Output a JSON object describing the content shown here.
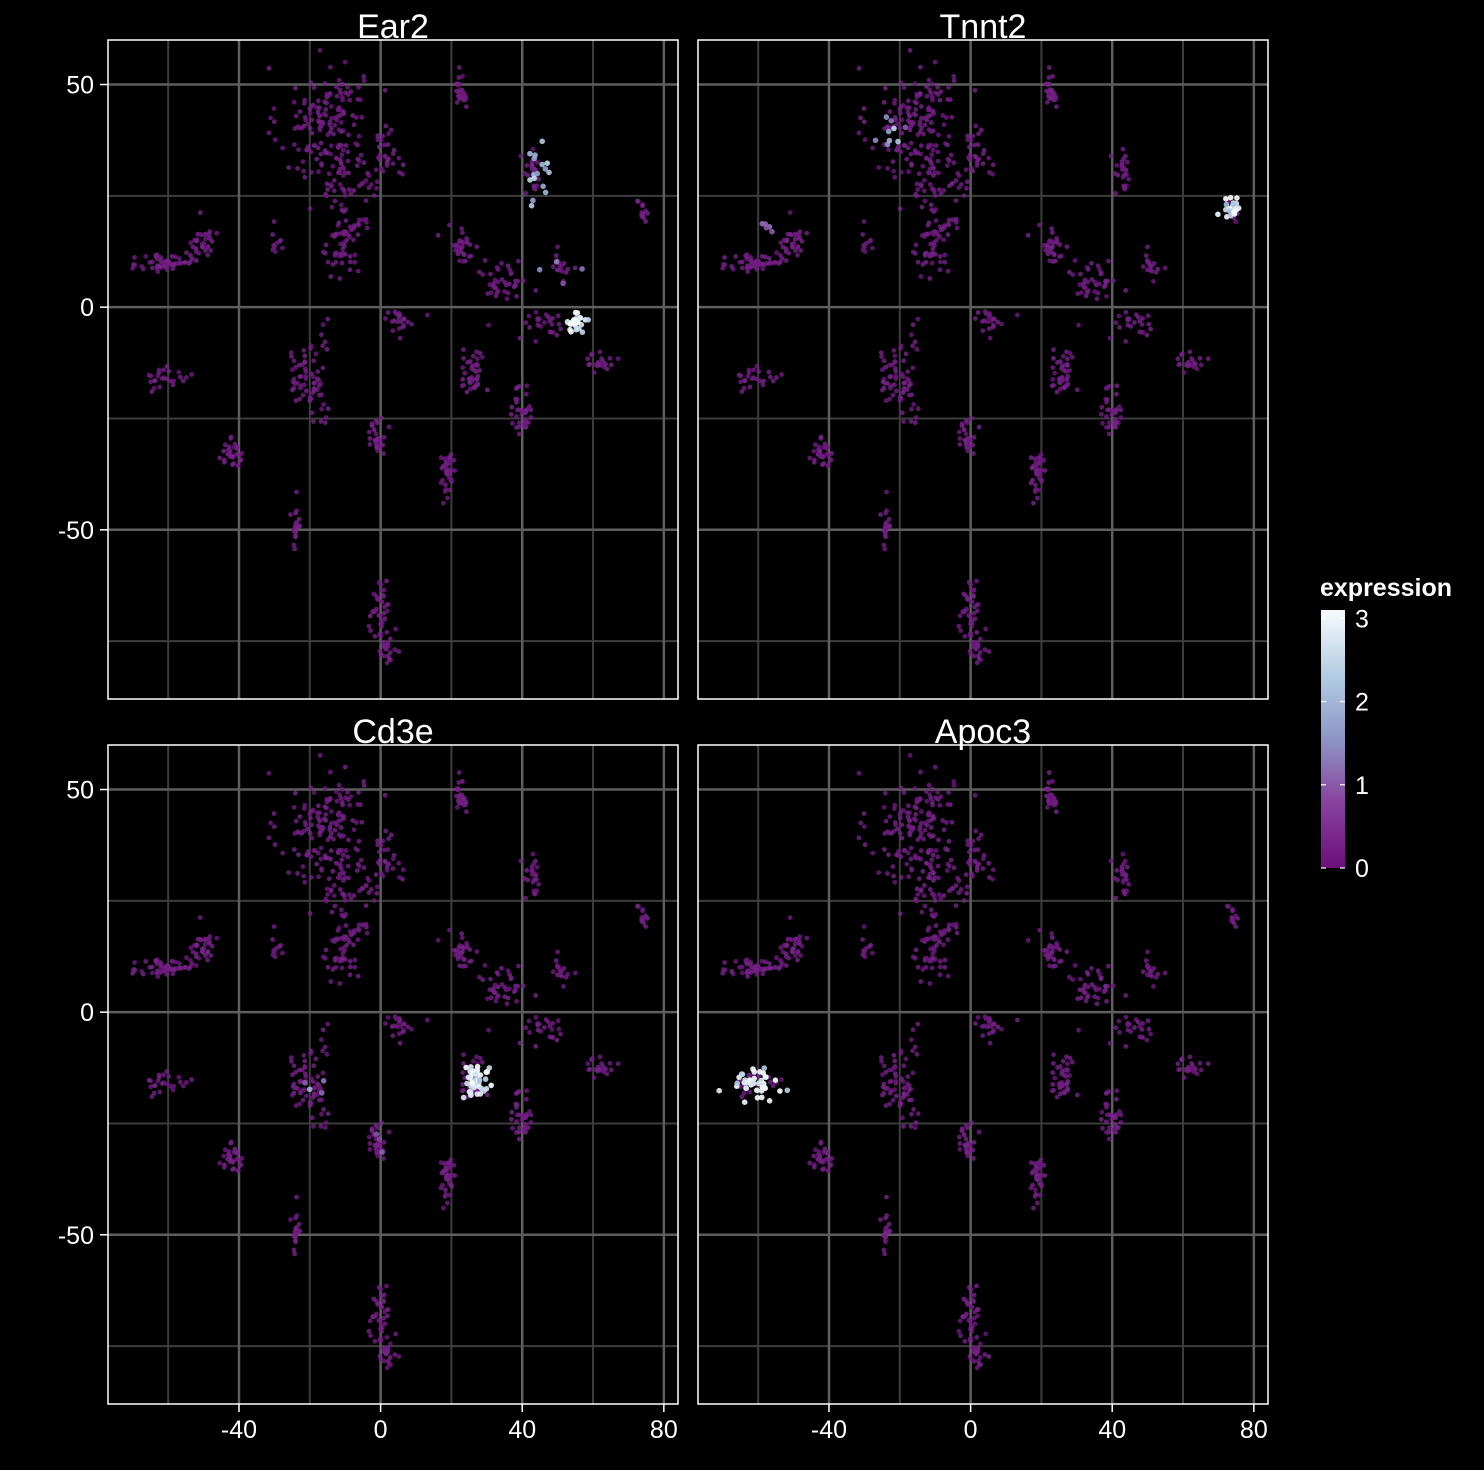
{
  "chart_data": {
    "type": "scatter",
    "x_range": [
      -77,
      84
    ],
    "y_range": [
      -88,
      60
    ],
    "x_ticks": [
      -40,
      0,
      40,
      80
    ],
    "x_tick_labels": [
      "-40",
      "0",
      "40",
      "80"
    ],
    "y_ticks": [
      50,
      0,
      -50
    ],
    "y_tick_labels": [
      "50",
      "0",
      "-50"
    ],
    "x_minor_gridlines": [
      -60,
      -20,
      20,
      60
    ],
    "y_minor_gridlines": [
      25,
      -25,
      -75
    ],
    "grid": true,
    "background": "#000000",
    "panels": [
      {
        "title": "Ear2",
        "highlights": [
          {
            "cx": 44,
            "cy": 30,
            "sx": 1.6,
            "sy": 3.0,
            "n": 16,
            "value": 2.2
          },
          {
            "cx": 55,
            "cy": -3,
            "sx": 1.4,
            "sy": 1.3,
            "n": 26,
            "value": 3.0
          },
          {
            "cx": 50,
            "cy": 9,
            "sx": 3.5,
            "sy": 3.5,
            "n": 4,
            "value": 1.2
          }
        ]
      },
      {
        "title": "Tnnt2",
        "highlights": [
          {
            "cx": 74,
            "cy": 22,
            "sx": 1.0,
            "sy": 1.3,
            "n": 24,
            "value": 3.0
          },
          {
            "cx": -23,
            "cy": 38,
            "sx": 2.0,
            "sy": 2.5,
            "n": 9,
            "value": 1.5
          },
          {
            "cx": -57,
            "cy": 17,
            "sx": 1.8,
            "sy": 1.0,
            "n": 5,
            "value": 1.0
          }
        ]
      },
      {
        "title": "Cd3e",
        "highlights": [
          {
            "cx": 27,
            "cy": -15,
            "sx": 1.8,
            "sy": 2.6,
            "n": 44,
            "value": 2.8
          },
          {
            "cx": -19,
            "cy": -16,
            "sx": 1.5,
            "sy": 1.5,
            "n": 4,
            "value": 1.5
          },
          {
            "cx": -1,
            "cy": -29,
            "sx": 1.5,
            "sy": 2.0,
            "n": 3,
            "value": 1.2
          }
        ]
      },
      {
        "title": "Apoc3",
        "highlights": [
          {
            "cx": -61,
            "cy": -16,
            "sx": 3.3,
            "sy": 1.6,
            "n": 40,
            "value": 3.0
          }
        ]
      }
    ],
    "clusters": [
      {
        "cx": -17,
        "cy": 40,
        "sx": 6,
        "sy": 7,
        "n": 130
      },
      {
        "cx": -10,
        "cy": 46,
        "sx": 3.5,
        "sy": 3.5,
        "n": 30
      },
      {
        "cx": -10,
        "cy": 25,
        "sx": 3.5,
        "sy": 7,
        "n": 50
      },
      {
        "cx": -10,
        "cy": 12,
        "sx": 2.5,
        "sy": 3.5,
        "n": 35
      },
      {
        "cx": 2,
        "cy": 35,
        "sx": 2,
        "sy": 3,
        "n": 30
      },
      {
        "cx": -3,
        "cy": 25,
        "sx": 1.5,
        "sy": 3,
        "n": 10
      },
      {
        "cx": -61,
        "cy": 10,
        "sx": 3.5,
        "sy": 1.5,
        "n": 50
      },
      {
        "cx": -52,
        "cy": 13,
        "sx": 3,
        "sy": 1.8,
        "n": 25
      },
      {
        "cx": -50,
        "cy": 16,
        "sx": 2,
        "sy": 2,
        "n": 12
      },
      {
        "cx": -29,
        "cy": 15,
        "sx": 1,
        "sy": 1.5,
        "n": 10
      },
      {
        "cx": 23,
        "cy": 49,
        "sx": 1,
        "sy": 2.5,
        "n": 25
      },
      {
        "cx": 43,
        "cy": 30,
        "sx": 1.3,
        "sy": 2.5,
        "n": 25
      },
      {
        "cx": 74,
        "cy": 21,
        "sx": 0.8,
        "sy": 1.5,
        "n": 12
      },
      {
        "cx": 23,
        "cy": 14,
        "sx": 2.5,
        "sy": 2,
        "n": 30
      },
      {
        "cx": 35,
        "cy": 6,
        "sx": 3,
        "sy": 2.5,
        "n": 40
      },
      {
        "cx": 51,
        "cy": 9,
        "sx": 1.5,
        "sy": 1.5,
        "n": 16
      },
      {
        "cx": 45,
        "cy": -4,
        "sx": 5,
        "sy": 1.8,
        "n": 25
      },
      {
        "cx": 6,
        "cy": -3,
        "sx": 2.5,
        "sy": 1.2,
        "n": 22
      },
      {
        "cx": -22,
        "cy": -15,
        "sx": 2.5,
        "sy": 3,
        "n": 40
      },
      {
        "cx": -18,
        "cy": -21,
        "sx": 1.5,
        "sy": 2.5,
        "n": 18
      },
      {
        "cx": -17,
        "cy": -9,
        "sx": 1.5,
        "sy": 2.5,
        "n": 10
      },
      {
        "cx": 26,
        "cy": -15,
        "sx": 1.8,
        "sy": 3,
        "n": 40
      },
      {
        "cx": -60,
        "cy": -16,
        "sx": 3,
        "sy": 1.2,
        "n": 25
      },
      {
        "cx": 62,
        "cy": -12,
        "sx": 1.8,
        "sy": 1.5,
        "n": 22
      },
      {
        "cx": 40,
        "cy": -23,
        "sx": 1.5,
        "sy": 3,
        "n": 35
      },
      {
        "cx": -1,
        "cy": -29,
        "sx": 1.5,
        "sy": 2,
        "n": 30
      },
      {
        "cx": -42,
        "cy": -33,
        "sx": 1.5,
        "sy": 1.5,
        "n": 30
      },
      {
        "cx": 19,
        "cy": -37,
        "sx": 1.3,
        "sy": 2.5,
        "n": 35
      },
      {
        "cx": -24,
        "cy": -50,
        "sx": 0.7,
        "sy": 3,
        "n": 20
      },
      {
        "cx": 0,
        "cy": -67,
        "sx": 1.5,
        "sy": 3.5,
        "n": 35
      },
      {
        "cx": 2,
        "cy": -77,
        "sx": 1.2,
        "sy": 2.5,
        "n": 25
      }
    ],
    "colorbar": {
      "title": "expression",
      "ticks": [
        0,
        1,
        2,
        3
      ],
      "tick_labels": [
        "0",
        "1",
        "2",
        "3"
      ],
      "range": [
        0,
        3.1
      ],
      "colors": [
        "#6a0f7a",
        "#88419d",
        "#8c96c6",
        "#b3cde3",
        "#f7fcfd"
      ]
    }
  }
}
